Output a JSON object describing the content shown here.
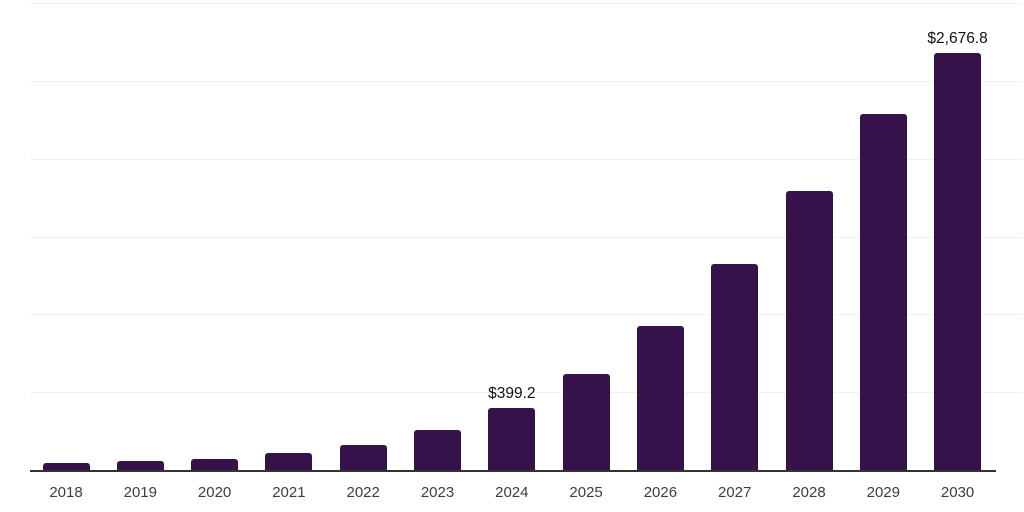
{
  "chart_data": {
    "type": "bar",
    "title": "",
    "xlabel": "",
    "ylabel": "",
    "categories": [
      "2018",
      "2019",
      "2020",
      "2021",
      "2022",
      "2023",
      "2024",
      "2025",
      "2026",
      "2027",
      "2028",
      "2029",
      "2030"
    ],
    "values": [
      42,
      55,
      71,
      109,
      161,
      254,
      399.2,
      617,
      925,
      1323,
      1792,
      2287,
      2676.8
    ],
    "value_labels": {
      "2024": "$399.2",
      "2030": "$2,676.8"
    },
    "ylim": [
      0,
      3000
    ],
    "gridline_step": 500,
    "grid": true,
    "legend": false,
    "y_axis_labels_shown": false,
    "colors": {
      "bar": "#36124A",
      "gridline": "#f0f0f0",
      "axis_line": "#333333",
      "tick_label": "#3d3d3d",
      "value_label": "#111111",
      "background": "#ffffff"
    }
  }
}
